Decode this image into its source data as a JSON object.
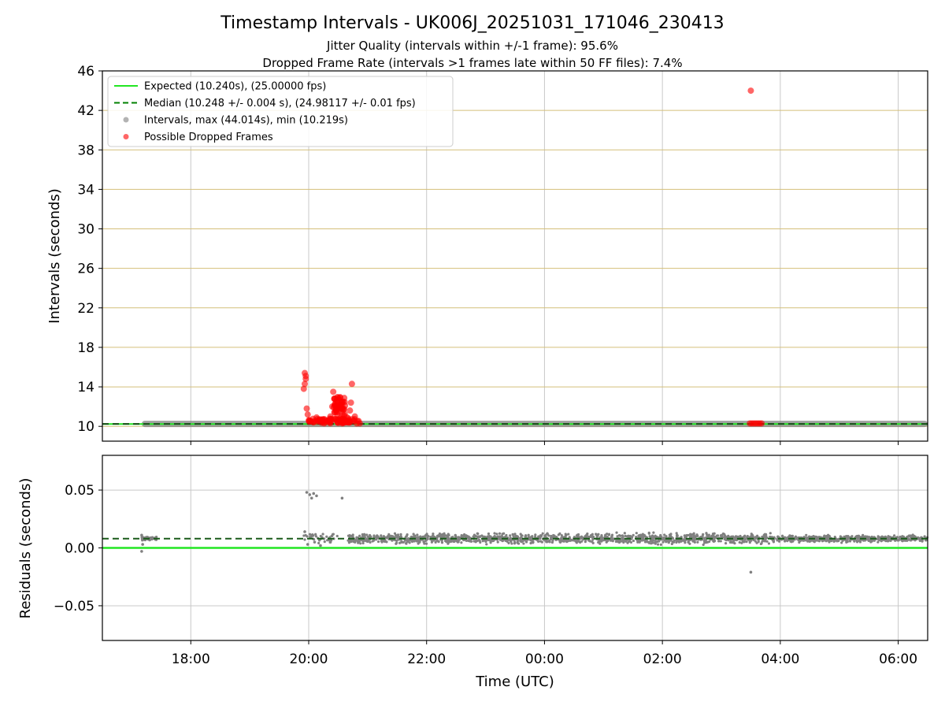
{
  "title": "Timestamp Intervals - UK006J_20251031_171046_230413",
  "subtitle1": "Jitter Quality (intervals within +/-1 frame): 95.6%",
  "subtitle2": "Dropped Frame Rate (intervals >1 frames late within 50 FF files): 7.4%",
  "colors": {
    "expected": "#22e622",
    "median": "#008000",
    "intervals": "#808080",
    "dropped": "#ff0000",
    "hgrid_top": "#d4bf7a",
    "grid": "#c8c8c8"
  },
  "chart_data": [
    {
      "type": "scatter",
      "ylabel": "Intervals (seconds)",
      "xlim": [
        "16:30",
        "06:30"
      ],
      "ylim": [
        8.5,
        46
      ],
      "yticks": [
        "10",
        "14",
        "18",
        "22",
        "26",
        "30",
        "34",
        "38",
        "42",
        "46"
      ],
      "grid": true,
      "legend_position": "upper-left",
      "legend": [
        {
          "label": "Expected (10.240s), (25.00000 fps)",
          "style": "solid-line"
        },
        {
          "label": "Median (10.248 +/- 0.004 s), (24.98117 +/- 0.01 fps)",
          "style": "dashed-line"
        },
        {
          "label": "Intervals, max (44.014s), min (10.219s)",
          "style": "gray-dot"
        },
        {
          "label": "Possible Dropped Frames",
          "style": "red-dot"
        }
      ],
      "expected": 10.24,
      "median": 10.248,
      "intervals_range": {
        "start": "17:10",
        "end": "06:30",
        "value": 10.248
      },
      "dropped_frames": [
        {
          "x": "19:56",
          "y": 15.4
        },
        {
          "x": "19:57",
          "y": 15.1
        },
        {
          "x": "19:57",
          "y": 14.8
        },
        {
          "x": "19:56",
          "y": 14.3
        },
        {
          "x": "19:55",
          "y": 13.8
        },
        {
          "x": "19:58",
          "y": 11.8
        },
        {
          "x": "19:59",
          "y": 11.2
        },
        {
          "x": "20:00",
          "y": 10.6
        },
        {
          "x": "20:02",
          "y": 10.5
        },
        {
          "x": "20:05",
          "y": 10.4
        },
        {
          "x": "20:08",
          "y": 10.9
        },
        {
          "x": "20:11",
          "y": 10.5
        },
        {
          "x": "20:14",
          "y": 10.7
        },
        {
          "x": "20:17",
          "y": 10.4
        },
        {
          "x": "20:20",
          "y": 10.6
        },
        {
          "x": "20:22",
          "y": 11.0
        },
        {
          "x": "20:24",
          "y": 12.0
        },
        {
          "x": "20:25",
          "y": 13.5
        },
        {
          "x": "20:26",
          "y": 12.8
        },
        {
          "x": "20:27",
          "y": 12.3
        },
        {
          "x": "20:28",
          "y": 11.6
        },
        {
          "x": "20:29",
          "y": 12.6
        },
        {
          "x": "20:30",
          "y": 12.0
        },
        {
          "x": "20:31",
          "y": 11.4
        },
        {
          "x": "20:32",
          "y": 12.9
        },
        {
          "x": "20:33",
          "y": 12.2
        },
        {
          "x": "20:34",
          "y": 11.8
        },
        {
          "x": "20:35",
          "y": 12.5
        },
        {
          "x": "20:36",
          "y": 11.1
        },
        {
          "x": "20:37",
          "y": 12.1
        },
        {
          "x": "20:38",
          "y": 10.6
        },
        {
          "x": "20:39",
          "y": 10.9
        },
        {
          "x": "20:40",
          "y": 10.4
        },
        {
          "x": "20:42",
          "y": 11.6
        },
        {
          "x": "20:43",
          "y": 12.4
        },
        {
          "x": "20:44",
          "y": 14.3
        },
        {
          "x": "20:46",
          "y": 10.5
        },
        {
          "x": "20:49",
          "y": 10.3
        },
        {
          "x": "20:52",
          "y": 10.3
        },
        {
          "x": "20:47",
          "y": 11.0
        },
        {
          "x": "03:29",
          "y": 10.3
        },
        {
          "x": "03:31",
          "y": 10.3
        },
        {
          "x": "03:33",
          "y": 10.3
        },
        {
          "x": "03:35",
          "y": 10.3
        },
        {
          "x": "03:37",
          "y": 10.3
        },
        {
          "x": "03:39",
          "y": 10.3
        },
        {
          "x": "03:41",
          "y": 10.3
        },
        {
          "x": "03:30",
          "y": 44.0
        }
      ]
    },
    {
      "type": "scatter",
      "xlabel": "Time (UTC)",
      "ylabel": "Residuals (seconds)",
      "xlim": [
        "16:30",
        "06:30"
      ],
      "ylim": [
        -0.08,
        0.08
      ],
      "yticks": [
        "0.05",
        "0.00",
        "−0.05"
      ],
      "xticks": [
        "18:00",
        "20:00",
        "22:00",
        "00:00",
        "02:00",
        "04:00",
        "06:00"
      ],
      "grid": true,
      "expected": 0.0,
      "median": 0.008,
      "outliers": [
        {
          "x": "17:10",
          "y": -0.003
        },
        {
          "x": "17:10",
          "y": 0.011
        },
        {
          "x": "17:11",
          "y": 0.003
        },
        {
          "x": "19:58",
          "y": 0.048
        },
        {
          "x": "20:01",
          "y": 0.046
        },
        {
          "x": "20:03",
          "y": 0.043
        },
        {
          "x": "20:05",
          "y": 0.047
        },
        {
          "x": "20:08",
          "y": 0.045
        },
        {
          "x": "20:34",
          "y": 0.043
        },
        {
          "x": "19:56",
          "y": 0.014
        },
        {
          "x": "19:59",
          "y": 0.003
        },
        {
          "x": "20:06",
          "y": 0.005
        },
        {
          "x": "20:12",
          "y": 0.002
        },
        {
          "x": "03:30",
          "y": -0.021
        }
      ]
    }
  ]
}
